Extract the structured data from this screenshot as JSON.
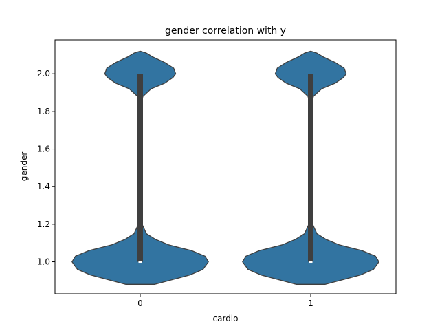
{
  "chart_data": {
    "type": "violin",
    "title": "gender correlation with y",
    "xlabel": "cardio",
    "ylabel": "gender",
    "categories": [
      "0",
      "1"
    ],
    "ylim": [
      0.83,
      2.18
    ],
    "yticks": [
      1.0,
      1.2,
      1.4,
      1.6,
      1.8,
      2.0
    ],
    "ytick_labels": [
      "1.0",
      "1.2",
      "1.4",
      "1.6",
      "1.8",
      "2.0"
    ],
    "violin_color": "#3274a1",
    "violins": [
      {
        "category": "0",
        "min": 1.0,
        "q1": 1.0,
        "median": 1.0,
        "q3": 2.0,
        "max": 2.0,
        "density_profile": [
          [
            0.88,
            0.21
          ],
          [
            0.9,
            0.42
          ],
          [
            0.93,
            0.73
          ],
          [
            0.96,
            0.92
          ],
          [
            1.0,
            1.0
          ],
          [
            1.03,
            0.95
          ],
          [
            1.06,
            0.75
          ],
          [
            1.09,
            0.42
          ],
          [
            1.12,
            0.22
          ],
          [
            1.15,
            0.09
          ],
          [
            1.2,
            0.028
          ],
          [
            1.3,
            0.008
          ],
          [
            1.45,
            0.002
          ],
          [
            1.6,
            0.002
          ],
          [
            1.75,
            0.004
          ],
          [
            1.84,
            0.012
          ],
          [
            1.88,
            0.04
          ],
          [
            1.92,
            0.16
          ],
          [
            1.95,
            0.36
          ],
          [
            1.98,
            0.48
          ],
          [
            2.0,
            0.52
          ],
          [
            2.03,
            0.49
          ],
          [
            2.06,
            0.36
          ],
          [
            2.09,
            0.18
          ],
          [
            2.11,
            0.09
          ],
          [
            2.12,
            0.0
          ]
        ]
      },
      {
        "category": "1",
        "min": 1.0,
        "q1": 1.0,
        "median": 1.0,
        "q3": 2.0,
        "max": 2.0,
        "density_profile": [
          [
            0.88,
            0.21
          ],
          [
            0.9,
            0.42
          ],
          [
            0.93,
            0.73
          ],
          [
            0.96,
            0.92
          ],
          [
            1.0,
            1.0
          ],
          [
            1.03,
            0.95
          ],
          [
            1.06,
            0.75
          ],
          [
            1.09,
            0.42
          ],
          [
            1.12,
            0.22
          ],
          [
            1.15,
            0.09
          ],
          [
            1.2,
            0.028
          ],
          [
            1.3,
            0.008
          ],
          [
            1.45,
            0.002
          ],
          [
            1.6,
            0.002
          ],
          [
            1.75,
            0.004
          ],
          [
            1.84,
            0.012
          ],
          [
            1.88,
            0.04
          ],
          [
            1.92,
            0.16
          ],
          [
            1.95,
            0.36
          ],
          [
            1.98,
            0.48
          ],
          [
            2.0,
            0.52
          ],
          [
            2.03,
            0.49
          ],
          [
            2.06,
            0.36
          ],
          [
            2.09,
            0.18
          ],
          [
            2.11,
            0.09
          ],
          [
            2.12,
            0.0
          ]
        ]
      }
    ],
    "grid": false,
    "legend": "none"
  }
}
